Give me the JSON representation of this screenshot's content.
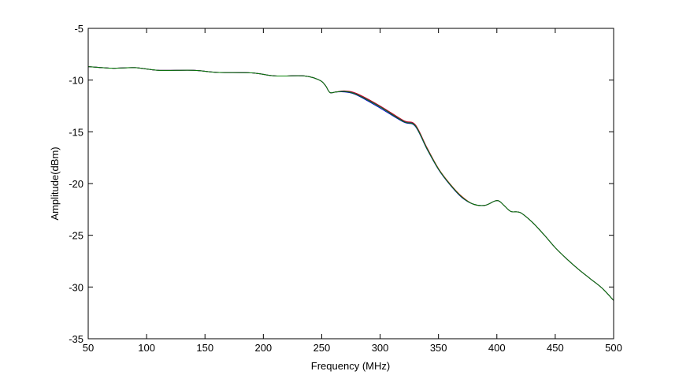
{
  "chart_data": {
    "type": "line",
    "title": "",
    "xlabel": "Frequency (MHz)",
    "ylabel": "Amplitude(dBm)",
    "xlim": [
      50,
      500
    ],
    "ylim": [
      -35,
      -5
    ],
    "grid": false,
    "legend": "none",
    "xticks": [
      50,
      100,
      150,
      200,
      250,
      300,
      350,
      400,
      450,
      500
    ],
    "yticks": [
      -35,
      -30,
      -25,
      -20,
      -15,
      -10,
      -5
    ],
    "xtick_labels": [
      "50",
      "100",
      "150",
      "200",
      "250",
      "300",
      "350",
      "400",
      "450",
      "500"
    ],
    "ytick_labels": [
      "-35",
      "-30",
      "-25",
      "-20",
      "-15",
      "-10",
      "-5"
    ],
    "series": [
      {
        "color": "#008000",
        "x": [
          50,
          70,
          90,
          110,
          140,
          160,
          190,
          210,
          235,
          248,
          253,
          257,
          262,
          270,
          280,
          300,
          320,
          330,
          340,
          350,
          360,
          370,
          380,
          390,
          398,
          402,
          406,
          412,
          420,
          430,
          440,
          450,
          460,
          470,
          480,
          490,
          500
        ],
        "values": [
          -8.7,
          -8.85,
          -8.8,
          -9.05,
          -9.05,
          -9.25,
          -9.3,
          -9.6,
          -9.6,
          -10.0,
          -10.5,
          -11.2,
          -11.15,
          -11.1,
          -11.4,
          -12.6,
          -14.0,
          -14.4,
          -16.6,
          -18.6,
          -20.1,
          -21.3,
          -22.0,
          -22.1,
          -21.7,
          -21.7,
          -22.1,
          -22.7,
          -22.8,
          -23.7,
          -24.9,
          -26.2,
          -27.3,
          -28.3,
          -29.2,
          -30.1,
          -31.3
        ]
      },
      {
        "color": "#cc0000",
        "x": [
          50,
          70,
          90,
          110,
          140,
          160,
          190,
          210,
          235,
          248,
          253,
          257,
          262,
          270,
          280,
          300,
          320,
          330,
          340,
          350,
          360,
          370,
          380,
          390,
          398,
          402,
          406,
          412,
          420,
          430,
          440,
          450,
          460,
          470,
          480,
          490,
          500
        ],
        "values": [
          -8.7,
          -8.85,
          -8.8,
          -9.05,
          -9.05,
          -9.25,
          -9.3,
          -9.6,
          -9.6,
          -10.0,
          -10.5,
          -11.2,
          -11.15,
          -11.05,
          -11.3,
          -12.5,
          -13.9,
          -14.3,
          -16.5,
          -18.55,
          -20.05,
          -21.25,
          -22.0,
          -22.1,
          -21.7,
          -21.7,
          -22.1,
          -22.7,
          -22.8,
          -23.7,
          -24.9,
          -26.2,
          -27.3,
          -28.3,
          -29.2,
          -30.1,
          -31.3
        ]
      },
      {
        "color": "#0000cc",
        "x": [
          50,
          70,
          90,
          110,
          140,
          160,
          190,
          210,
          235,
          248,
          253,
          257,
          262,
          270,
          280,
          300,
          320,
          330,
          340,
          350,
          360,
          370,
          380,
          390,
          398,
          402,
          406,
          412,
          420,
          430,
          440,
          450,
          460,
          470,
          480,
          490,
          500
        ],
        "values": [
          -8.7,
          -8.85,
          -8.8,
          -9.05,
          -9.05,
          -9.25,
          -9.3,
          -9.6,
          -9.6,
          -10.0,
          -10.5,
          -11.2,
          -11.15,
          -11.15,
          -11.45,
          -12.7,
          -14.05,
          -14.45,
          -16.65,
          -18.65,
          -20.15,
          -21.35,
          -22.0,
          -22.1,
          -21.7,
          -21.7,
          -22.1,
          -22.7,
          -22.8,
          -23.7,
          -24.9,
          -26.2,
          -27.3,
          -28.3,
          -29.2,
          -30.1,
          -31.3
        ]
      },
      {
        "color": "#800080",
        "x": [
          50,
          70,
          90,
          110,
          140,
          160,
          190,
          210,
          235,
          248,
          253,
          257,
          262,
          270,
          280,
          300,
          320,
          330,
          340,
          350,
          360,
          370,
          380,
          390,
          398,
          402,
          406,
          412,
          420,
          430,
          440,
          450,
          460,
          470,
          480,
          490,
          500
        ],
        "values": [
          -8.7,
          -8.85,
          -8.8,
          -9.05,
          -9.05,
          -9.25,
          -9.3,
          -9.6,
          -9.6,
          -10.0,
          -10.5,
          -11.2,
          -11.15,
          -11.08,
          -11.35,
          -12.55,
          -13.95,
          -14.35,
          -16.55,
          -18.6,
          -20.1,
          -21.3,
          -22.0,
          -22.1,
          -21.7,
          -21.7,
          -22.1,
          -22.7,
          -22.8,
          -23.7,
          -24.9,
          -26.2,
          -27.3,
          -28.3,
          -29.2,
          -30.1,
          -31.3
        ]
      }
    ]
  }
}
